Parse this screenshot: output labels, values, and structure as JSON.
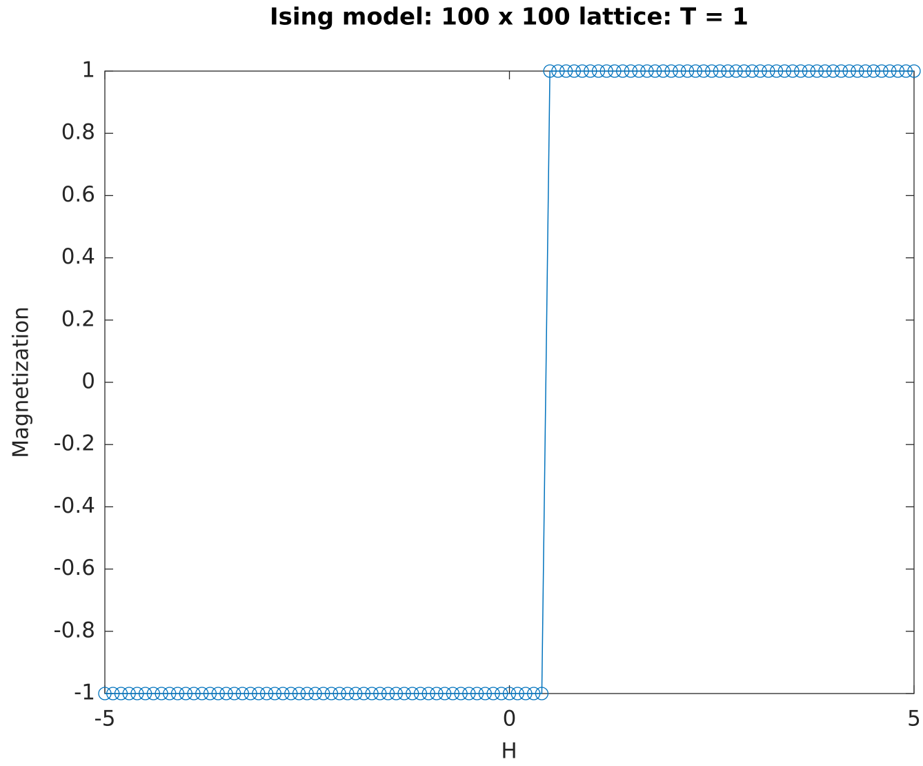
{
  "chart_data": {
    "type": "line",
    "title": "Ising model: 100 x 100 lattice: T = 1",
    "xlabel": "H",
    "ylabel": "Magnetization",
    "x": [
      -5,
      -4.9,
      -4.8,
      -4.7,
      -4.6,
      -4.5,
      -4.4,
      -4.3,
      -4.2,
      -4.1,
      -4,
      -3.9,
      -3.8,
      -3.7,
      -3.6,
      -3.5,
      -3.4,
      -3.3,
      -3.2,
      -3.1,
      -3,
      -2.9,
      -2.8,
      -2.7,
      -2.6,
      -2.5,
      -2.4,
      -2.3,
      -2.2,
      -2.1,
      -2,
      -1.9,
      -1.8,
      -1.7,
      -1.6,
      -1.5,
      -1.4,
      -1.3,
      -1.2,
      -1.1,
      -1,
      -0.9,
      -0.8,
      -0.7,
      -0.6,
      -0.5,
      -0.4,
      -0.3,
      -0.2,
      -0.1,
      0,
      0.1,
      0.2,
      0.3,
      0.4,
      0.5,
      0.6,
      0.7,
      0.8,
      0.9,
      1,
      1.1,
      1.2,
      1.3,
      1.4,
      1.5,
      1.6,
      1.7,
      1.8,
      1.9,
      2,
      2.1,
      2.2,
      2.3,
      2.4,
      2.5,
      2.6,
      2.7,
      2.8,
      2.9,
      3,
      3.1,
      3.2,
      3.3,
      3.4,
      3.5,
      3.6,
      3.7,
      3.8,
      3.9,
      4,
      4.1,
      4.2,
      4.3,
      4.4,
      4.5,
      4.6,
      4.7,
      4.8,
      4.9,
      5
    ],
    "series": [
      {
        "color": "#0072bd",
        "values": [
          -1,
          -1,
          -1,
          -1,
          -1,
          -1,
          -1,
          -1,
          -1,
          -1,
          -1,
          -1,
          -1,
          -1,
          -1,
          -1,
          -1,
          -1,
          -1,
          -1,
          -1,
          -1,
          -1,
          -1,
          -1,
          -1,
          -1,
          -1,
          -1,
          -1,
          -1,
          -1,
          -1,
          -1,
          -1,
          -1,
          -1,
          -1,
          -1,
          -1,
          -1,
          -1,
          -1,
          -1,
          -1,
          -1,
          -1,
          -1,
          -1,
          -1,
          -1,
          -1,
          -1,
          -1,
          -1,
          1,
          1,
          1,
          1,
          1,
          1,
          1,
          1,
          1,
          1,
          1,
          1,
          1,
          1,
          1,
          1,
          1,
          1,
          1,
          1,
          1,
          1,
          1,
          1,
          1,
          1,
          1,
          1,
          1,
          1,
          1,
          1,
          1,
          1,
          1,
          1,
          1,
          1,
          1,
          1,
          1,
          1,
          1,
          1,
          1,
          1
        ]
      }
    ],
    "xlim": [
      -5,
      5
    ],
    "xticks": [
      -5,
      0,
      5
    ],
    "ylim": [
      -1,
      1
    ],
    "yticks": [
      -1,
      -0.8,
      -0.6,
      -0.4,
      -0.2,
      0,
      0.2,
      0.4,
      0.6,
      0.8,
      1
    ],
    "grid": false
  }
}
